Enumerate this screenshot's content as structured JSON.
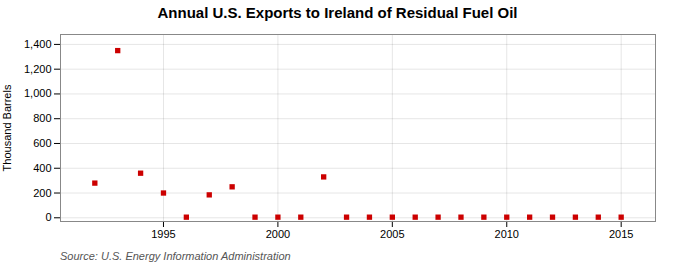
{
  "chart_data": {
    "type": "scatter",
    "title": "Annual U.S. Exports to Ireland of Residual Fuel Oil",
    "ylabel": "Thousand Barrels",
    "source": "Source: U.S. Energy Information Administration",
    "x": [
      1992,
      1993,
      1994,
      1995,
      1996,
      1997,
      1998,
      1999,
      2000,
      2001,
      2002,
      2003,
      2004,
      2005,
      2006,
      2007,
      2008,
      2009,
      2010,
      2011,
      2012,
      2013,
      2014,
      2015
    ],
    "values": [
      280,
      1350,
      360,
      200,
      5,
      185,
      250,
      5,
      5,
      5,
      330,
      5,
      5,
      5,
      5,
      5,
      5,
      5,
      5,
      5,
      5,
      5,
      5,
      5
    ],
    "color": "#cc0000",
    "marker": "square",
    "xlim": [
      1990.5,
      2016.5
    ],
    "xticks": [
      1995,
      2000,
      2005,
      2010,
      2015
    ],
    "ylim": [
      -30,
      1480
    ],
    "yticks": [
      0,
      200,
      400,
      600,
      800,
      {
        "value": 1000,
        "label": "1,000"
      },
      {
        "value": 1200,
        "label": "1,200"
      },
      {
        "value": 1400,
        "label": "1,400"
      }
    ],
    "grid": true
  }
}
